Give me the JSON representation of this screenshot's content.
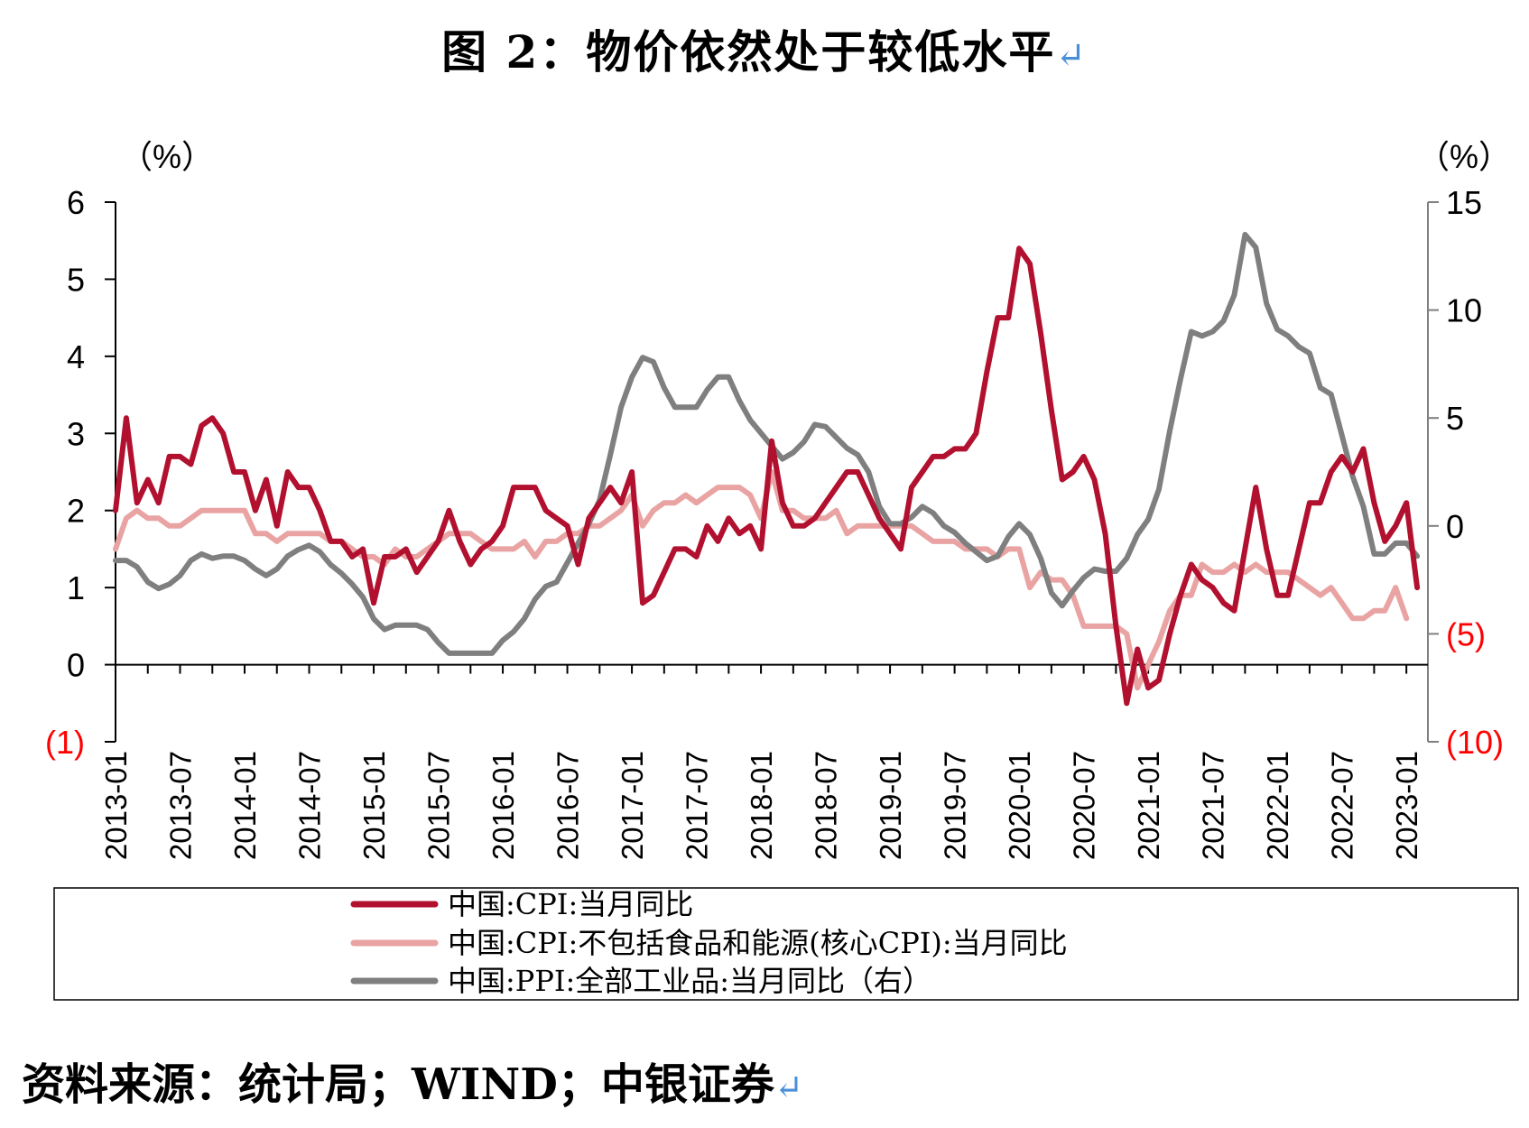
{
  "title": "图 2：物价依然处于较低水平",
  "return_mark": "↵",
  "source": "资料来源：统计局；WIND；中银证券",
  "chart_data": {
    "type": "line",
    "title": "图 2：物价依然处于较低水平",
    "ylabel_left": "（%）",
    "ylabel_right": "（%）",
    "ylim_left": [
      -1,
      6
    ],
    "ylim_right": [
      -10,
      15
    ],
    "yticks_left": [
      {
        "value": 6,
        "label": "6",
        "color": "#000000"
      },
      {
        "value": 5,
        "label": "5",
        "color": "#000000"
      },
      {
        "value": 4,
        "label": "4",
        "color": "#000000"
      },
      {
        "value": 3,
        "label": "3",
        "color": "#000000"
      },
      {
        "value": 2,
        "label": "2",
        "color": "#000000"
      },
      {
        "value": 1,
        "label": "1",
        "color": "#000000"
      },
      {
        "value": 0,
        "label": "0",
        "color": "#000000"
      },
      {
        "value": -1,
        "label": "(1)",
        "color": "#ff0000"
      }
    ],
    "yticks_right": [
      {
        "value": 15,
        "label": "15",
        "color": "#000000"
      },
      {
        "value": 10,
        "label": "10",
        "color": "#000000"
      },
      {
        "value": 5,
        "label": "5",
        "color": "#000000"
      },
      {
        "value": 0,
        "label": "0",
        "color": "#000000"
      },
      {
        "value": -5,
        "label": "(5)",
        "color": "#ff0000"
      },
      {
        "value": -10,
        "label": "(10)",
        "color": "#ff0000"
      }
    ],
    "x_start": "2013-01",
    "x_count": 123,
    "x_tick_labels": [
      "2013-01",
      "2013-07",
      "2014-01",
      "2014-07",
      "2015-01",
      "2015-07",
      "2016-01",
      "2016-07",
      "2017-01",
      "2017-07",
      "2018-01",
      "2018-07",
      "2019-01",
      "2019-07",
      "2020-01",
      "2020-07",
      "2021-01",
      "2021-07",
      "2022-01",
      "2022-07",
      "2023-01"
    ],
    "series": [
      {
        "name": "中国:CPI:当月同比",
        "axis": "left",
        "color": "#b2102f",
        "values": [
          2.0,
          3.2,
          2.1,
          2.4,
          2.1,
          2.7,
          2.7,
          2.6,
          3.1,
          3.2,
          3.0,
          2.5,
          2.5,
          2.0,
          2.4,
          1.8,
          2.5,
          2.3,
          2.3,
          2.0,
          1.6,
          1.6,
          1.4,
          1.5,
          0.8,
          1.4,
          1.4,
          1.5,
          1.2,
          1.4,
          1.6,
          2.0,
          1.6,
          1.3,
          1.5,
          1.6,
          1.8,
          2.3,
          2.3,
          2.3,
          2.0,
          1.9,
          1.8,
          1.3,
          1.9,
          2.1,
          2.3,
          2.1,
          2.5,
          0.8,
          0.9,
          1.2,
          1.5,
          1.5,
          1.4,
          1.8,
          1.6,
          1.9,
          1.7,
          1.8,
          1.5,
          2.9,
          2.1,
          1.8,
          1.8,
          1.9,
          2.1,
          2.3,
          2.5,
          2.5,
          2.2,
          1.9,
          1.7,
          1.5,
          2.3,
          2.5,
          2.7,
          2.7,
          2.8,
          2.8,
          3.0,
          3.8,
          4.5,
          4.5,
          5.4,
          5.2,
          4.3,
          3.3,
          2.4,
          2.5,
          2.7,
          2.4,
          1.7,
          0.5,
          -0.5,
          0.2,
          -0.3,
          -0.2,
          0.4,
          0.9,
          1.3,
          1.1,
          1.0,
          0.8,
          0.7,
          1.5,
          2.3,
          1.5,
          0.9,
          0.9,
          1.5,
          2.1,
          2.1,
          2.5,
          2.7,
          2.5,
          2.8,
          2.1,
          1.6,
          1.8,
          2.1,
          1.0
        ],
        "label_color": "#000000"
      },
      {
        "name": "中国:CPI:不包括食品和能源(核心CPI):当月同比",
        "axis": "left",
        "color": "#e9a3a3",
        "values": [
          1.5,
          1.9,
          2.0,
          1.9,
          1.9,
          1.8,
          1.8,
          1.9,
          2.0,
          2.0,
          2.0,
          2.0,
          2.0,
          1.7,
          1.7,
          1.6,
          1.7,
          1.7,
          1.7,
          1.7,
          1.6,
          1.6,
          1.5,
          1.4,
          1.4,
          1.3,
          1.5,
          1.4,
          1.4,
          1.5,
          1.6,
          1.7,
          1.7,
          1.7,
          1.6,
          1.5,
          1.5,
          1.5,
          1.6,
          1.4,
          1.6,
          1.6,
          1.7,
          1.7,
          1.8,
          1.8,
          1.9,
          2.0,
          2.2,
          1.8,
          2.0,
          2.1,
          2.1,
          2.2,
          2.1,
          2.2,
          2.3,
          2.3,
          2.3,
          2.2,
          1.9,
          2.5,
          2.0,
          2.0,
          1.9,
          1.9,
          1.9,
          2.0,
          1.7,
          1.8,
          1.8,
          1.8,
          1.8,
          1.8,
          1.8,
          1.7,
          1.6,
          1.6,
          1.6,
          1.5,
          1.5,
          1.5,
          1.4,
          1.5,
          1.5,
          1.0,
          1.2,
          1.1,
          1.1,
          0.9,
          0.5,
          0.5,
          0.5,
          0.5,
          0.4,
          -0.3,
          0.0,
          0.3,
          0.7,
          0.9,
          0.9,
          1.3,
          1.2,
          1.2,
          1.3,
          1.2,
          1.3,
          1.2,
          1.2,
          1.2,
          1.1,
          1.0,
          0.9,
          1.0,
          0.8,
          0.6,
          0.6,
          0.7,
          0.7,
          1.0,
          0.6
        ],
        "label_color": "#000000"
      },
      {
        "name": "中国:PPI:全部工业品:当月同比（右）",
        "axis": "right",
        "color": "#7f7f7f",
        "values": [
          -1.6,
          -1.6,
          -1.9,
          -2.6,
          -2.9,
          -2.7,
          -2.3,
          -1.6,
          -1.3,
          -1.5,
          -1.4,
          -1.4,
          -1.6,
          -2.0,
          -2.3,
          -2.0,
          -1.4,
          -1.1,
          -0.9,
          -1.2,
          -1.8,
          -2.2,
          -2.7,
          -3.3,
          -4.3,
          -4.8,
          -4.6,
          -4.6,
          -4.6,
          -4.8,
          -5.4,
          -5.9,
          -5.9,
          -5.9,
          -5.9,
          -5.9,
          -5.3,
          -4.9,
          -4.3,
          -3.4,
          -2.8,
          -2.6,
          -1.7,
          -0.8,
          0.1,
          1.2,
          3.3,
          5.5,
          6.9,
          7.8,
          7.6,
          6.4,
          5.5,
          5.5,
          5.5,
          6.3,
          6.9,
          6.9,
          5.8,
          4.9,
          4.3,
          3.7,
          3.1,
          3.4,
          3.9,
          4.7,
          4.6,
          4.1,
          3.6,
          3.3,
          2.5,
          0.9,
          0.1,
          0.1,
          0.4,
          0.9,
          0.6,
          0.0,
          -0.3,
          -0.8,
          -1.2,
          -1.6,
          -1.4,
          -0.5,
          0.1,
          -0.4,
          -1.5,
          -3.1,
          -3.7,
          -3.0,
          -2.4,
          -2.0,
          -2.1,
          -2.1,
          -1.5,
          -0.4,
          0.3,
          1.7,
          4.4,
          6.8,
          9.0,
          8.8,
          9.0,
          9.5,
          10.7,
          13.5,
          12.9,
          10.3,
          9.1,
          8.8,
          8.3,
          8.0,
          6.4,
          6.1,
          4.2,
          2.3,
          0.9,
          -1.3,
          -1.3,
          -0.8,
          -0.8,
          -1.4
        ],
        "label_color": "#000000"
      }
    ],
    "legend_position": "bottom"
  }
}
